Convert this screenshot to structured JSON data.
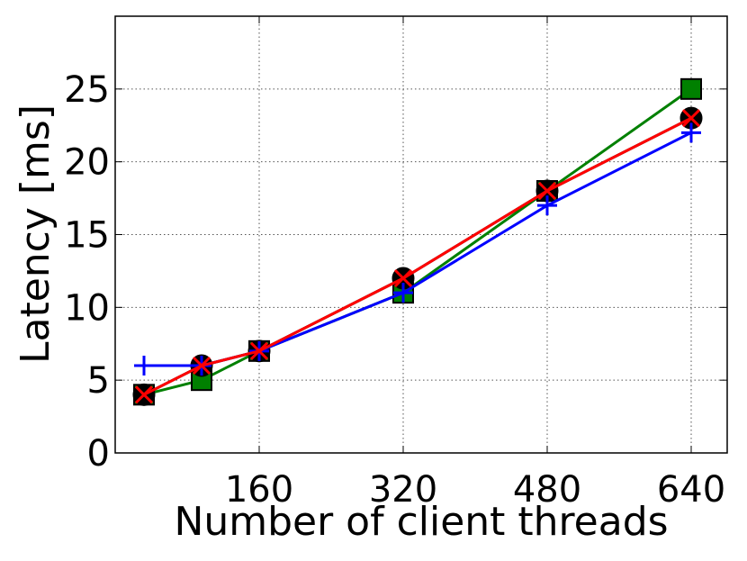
{
  "chart_data": {
    "type": "line",
    "x_label": "Number of client threads",
    "y_label": "Latency [ms]",
    "x": [
      32,
      96,
      160,
      320,
      480,
      640
    ],
    "xlim": [
      0,
      680
    ],
    "xticks": [
      160,
      320,
      480,
      640
    ],
    "ylim": [
      0,
      30
    ],
    "yticks": [
      0,
      5,
      10,
      15,
      20,
      25
    ],
    "grid": true,
    "series": [
      {
        "color": "#008000",
        "marker": "square",
        "values": [
          4,
          5,
          7,
          11,
          18,
          25
        ]
      },
      {
        "color": "#000000",
        "marker": "circle",
        "values": [
          4,
          6,
          7,
          12,
          18,
          23
        ]
      },
      {
        "color": "#0000ff",
        "marker": "plus",
        "values": [
          6,
          6,
          7,
          11,
          17,
          22
        ]
      },
      {
        "color": "#ff0000",
        "marker": "x",
        "values": [
          4,
          6,
          7,
          12,
          18,
          23
        ]
      }
    ]
  }
}
